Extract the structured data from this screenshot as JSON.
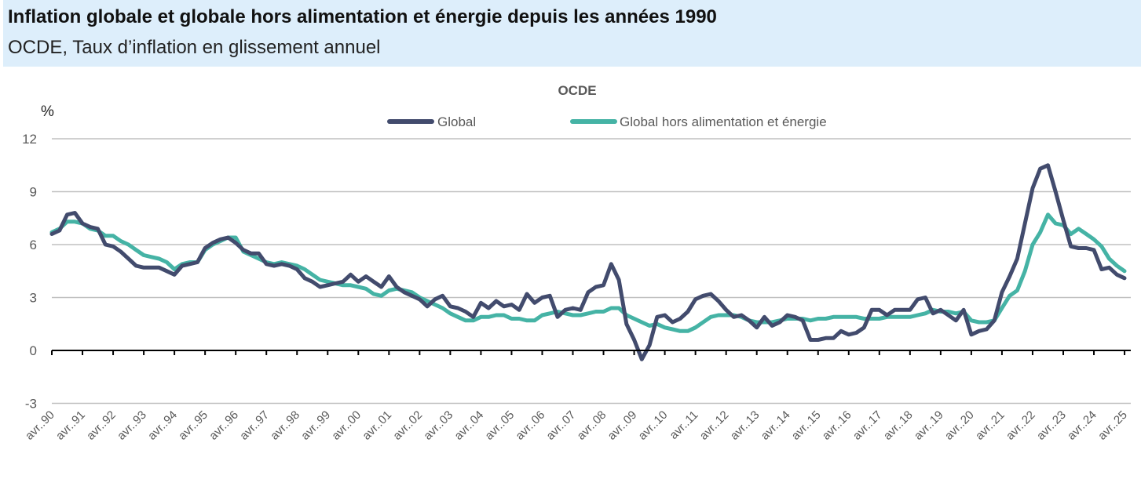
{
  "header": {
    "title": "Inflation globale et globale hors alimentation et énergie depuis les années 1990",
    "subtitle": "OCDE, Taux d’inflation en glissement annuel"
  },
  "chart_data": {
    "type": "line",
    "title": "OCDE",
    "ylabel": "%",
    "ylim": [
      -3,
      12
    ],
    "yticks": [
      -3,
      0,
      3,
      6,
      9,
      12
    ],
    "grid": true,
    "legend_position": "top",
    "x_start": "1990-04",
    "x_frequency": "quarterly",
    "xtick_labels": [
      "avr..90",
      "avr..91",
      "avr..92",
      "avr..93",
      "avr..94",
      "avr..95",
      "avr..96",
      "avr..97",
      "avr..98",
      "avr..99",
      "avr..00",
      "avr..01",
      "avr..02",
      "avr..03",
      "avr..04",
      "avr..05",
      "avr..06",
      "avr..07",
      "avr..08",
      "avr..09",
      "avr..10",
      "avr..11",
      "avr..12",
      "avr..13",
      "avr..14",
      "avr..15",
      "avr..16",
      "avr..17",
      "avr..18",
      "avr..19",
      "avr..20",
      "avr..21",
      "avr..22",
      "avr..23",
      "avr..24",
      "avr..25"
    ],
    "series": [
      {
        "name": "Global",
        "color": "#424b6d",
        "values": [
          6.6,
          6.8,
          7.7,
          7.8,
          7.2,
          7.0,
          6.9,
          6.0,
          5.9,
          5.6,
          5.2,
          4.8,
          4.7,
          4.7,
          4.7,
          4.5,
          4.3,
          4.8,
          4.9,
          5.0,
          5.8,
          6.1,
          6.3,
          6.4,
          6.1,
          5.7,
          5.5,
          5.5,
          4.9,
          4.8,
          4.9,
          4.8,
          4.6,
          4.1,
          3.9,
          3.6,
          3.7,
          3.8,
          3.9,
          4.3,
          3.9,
          4.2,
          3.9,
          3.6,
          4.2,
          3.6,
          3.3,
          3.1,
          2.9,
          2.5,
          2.9,
          3.1,
          2.5,
          2.4,
          2.2,
          1.9,
          2.7,
          2.4,
          2.8,
          2.5,
          2.6,
          2.3,
          3.2,
          2.7,
          3.0,
          3.1,
          1.9,
          2.3,
          2.4,
          2.3,
          3.3,
          3.6,
          3.7,
          4.9,
          4.0,
          1.5,
          0.6,
          -0.5,
          0.3,
          1.9,
          2.0,
          1.6,
          1.8,
          2.2,
          2.9,
          3.1,
          3.2,
          2.8,
          2.3,
          1.9,
          2.0,
          1.7,
          1.3,
          1.9,
          1.4,
          1.6,
          2.0,
          1.9,
          1.7,
          0.6,
          0.6,
          0.7,
          0.7,
          1.1,
          0.9,
          1.0,
          1.3,
          2.3,
          2.3,
          2.0,
          2.3,
          2.3,
          2.3,
          2.9,
          3.0,
          2.1,
          2.3,
          2.0,
          1.7,
          2.3,
          0.9,
          1.1,
          1.2,
          1.7,
          3.3,
          4.2,
          5.2,
          7.2,
          9.2,
          10.3,
          10.5,
          9.0,
          7.4,
          5.9,
          5.8,
          5.8,
          5.7,
          4.6,
          4.7,
          4.3,
          4.1
        ]
      },
      {
        "name": "Global hors alimentation et énergie",
        "color": "#45b3a5",
        "values": [
          6.7,
          6.9,
          7.3,
          7.3,
          7.2,
          6.9,
          6.8,
          6.5,
          6.5,
          6.2,
          6.0,
          5.7,
          5.4,
          5.3,
          5.2,
          5.0,
          4.6,
          4.9,
          5.0,
          5.0,
          5.7,
          6.0,
          6.2,
          6.4,
          6.4,
          5.6,
          5.4,
          5.2,
          5.0,
          4.9,
          5.0,
          4.9,
          4.8,
          4.6,
          4.3,
          4.0,
          3.9,
          3.8,
          3.7,
          3.7,
          3.6,
          3.5,
          3.2,
          3.1,
          3.4,
          3.5,
          3.4,
          3.3,
          3.0,
          2.8,
          2.6,
          2.4,
          2.1,
          1.9,
          1.7,
          1.7,
          1.9,
          1.9,
          2.0,
          2.0,
          1.8,
          1.8,
          1.7,
          1.7,
          2.0,
          2.1,
          2.2,
          2.1,
          2.0,
          2.0,
          2.1,
          2.2,
          2.2,
          2.4,
          2.4,
          2.0,
          1.8,
          1.6,
          1.4,
          1.5,
          1.3,
          1.2,
          1.1,
          1.1,
          1.3,
          1.6,
          1.9,
          2.0,
          2.0,
          2.0,
          1.9,
          1.7,
          1.6,
          1.6,
          1.6,
          1.7,
          1.8,
          1.8,
          1.8,
          1.7,
          1.8,
          1.8,
          1.9,
          1.9,
          1.9,
          1.9,
          1.8,
          1.8,
          1.8,
          1.9,
          1.9,
          1.9,
          1.9,
          2.0,
          2.1,
          2.3,
          2.2,
          2.2,
          2.1,
          2.2,
          1.7,
          1.6,
          1.6,
          1.7,
          2.4,
          3.1,
          3.4,
          4.5,
          6.0,
          6.7,
          7.7,
          7.2,
          7.1,
          6.6,
          6.9,
          6.6,
          6.3,
          5.9,
          5.2,
          4.8,
          4.5
        ]
      }
    ]
  }
}
